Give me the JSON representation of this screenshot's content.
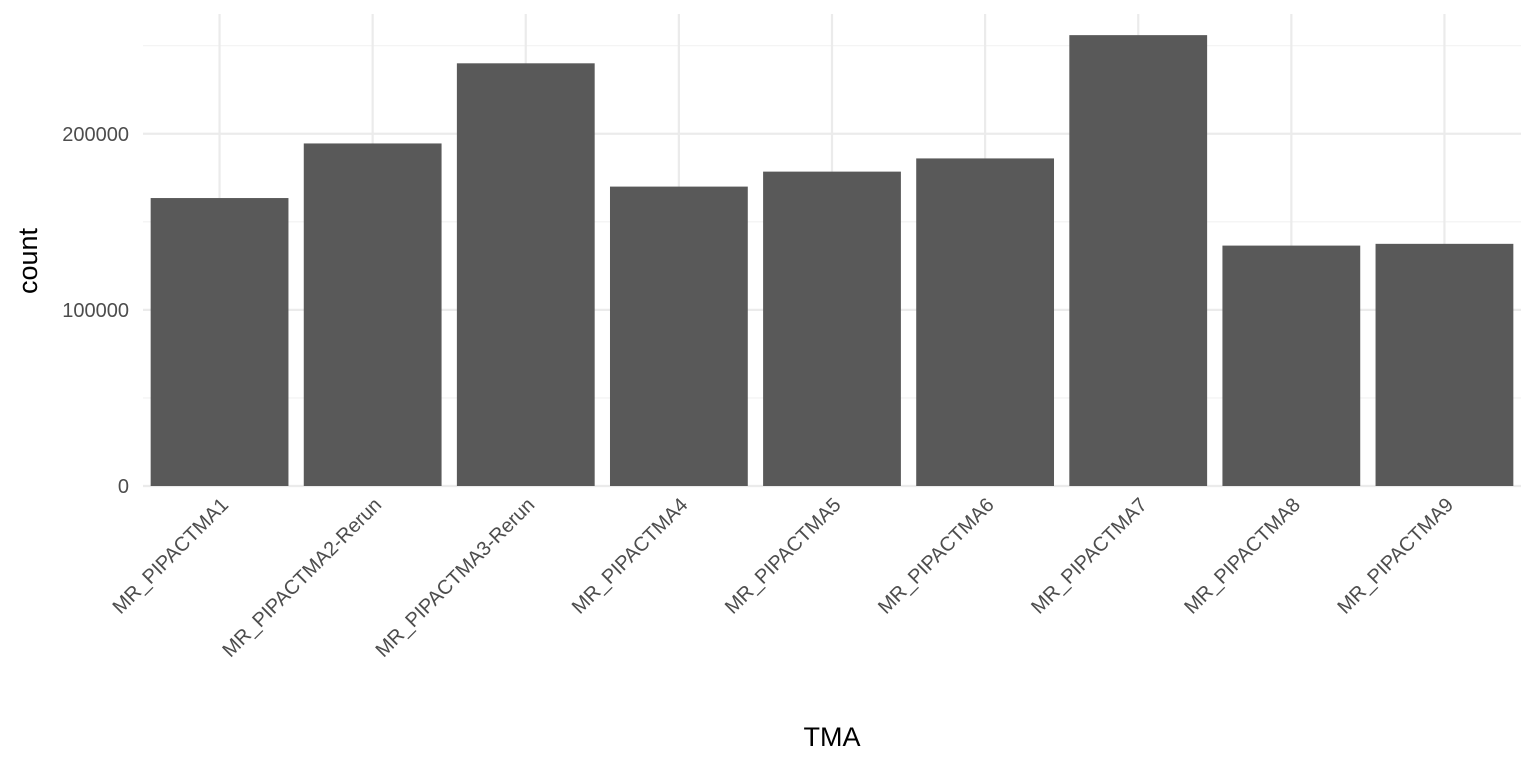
{
  "chart_data": {
    "type": "bar",
    "title": "",
    "xlabel": "TMA",
    "ylabel": "count",
    "categories": [
      "MR_PIPACTMA1",
      "MR_PIPACTMA2-Rerun",
      "MR_PIPACTMA3-Rerun",
      "MR_PIPACTMA4",
      "MR_PIPACTMA5",
      "MR_PIPACTMA6",
      "MR_PIPACTMA7",
      "MR_PIPACTMA8",
      "MR_PIPACTMA9"
    ],
    "values": [
      163500,
      194500,
      240000,
      170000,
      178500,
      186000,
      256000,
      136500,
      137500
    ],
    "ylim": [
      0,
      268000
    ],
    "yticks": [
      0,
      100000,
      200000
    ],
    "ytick_labels": [
      "0",
      "100000",
      "200000"
    ],
    "grid": true,
    "bar_color": "#595959",
    "grid_color": "#ebebeb"
  }
}
